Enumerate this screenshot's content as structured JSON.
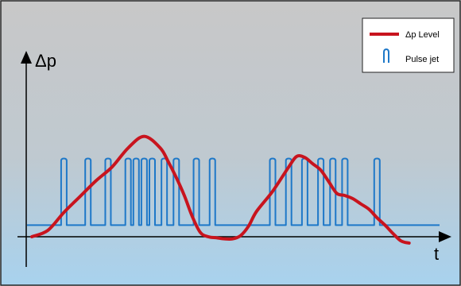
{
  "chart_data": {
    "type": "line",
    "title": "",
    "xlabel": "t",
    "ylabel": "Δp",
    "xlim": [
      0,
      100
    ],
    "ylim": [
      -10,
      100
    ],
    "grid": false,
    "legend_position": "top-right",
    "background": {
      "top": "#c8c8c8",
      "bottom": "#a8d2ee"
    },
    "series": [
      {
        "name": "Δp Level",
        "type": "line",
        "color": "#c8141e",
        "x": [
          0,
          4,
          8,
          12,
          16,
          20,
          24,
          28,
          32,
          34,
          36,
          38,
          40,
          42,
          44,
          46,
          48,
          50,
          52,
          54,
          56,
          60,
          64,
          66,
          68,
          70,
          72,
          74,
          76,
          78,
          80,
          82,
          84,
          86,
          88,
          90,
          92,
          94
        ],
        "y": [
          -6,
          0,
          17,
          32,
          47,
          60,
          78,
          89,
          78,
          65,
          50,
          33,
          13,
          -2,
          -6,
          -7,
          -8,
          -8,
          -5,
          4,
          18,
          37,
          60,
          70,
          69,
          63,
          57,
          46,
          35,
          33,
          30,
          25,
          20,
          12,
          5,
          -3,
          -10,
          -12
        ]
      },
      {
        "name": "Pulse jet",
        "type": "pulses",
        "color": "#1e78c8",
        "baseline": 5,
        "height": 63,
        "x": [
          8,
          14,
          19,
          24,
          26,
          28,
          30,
          33,
          36,
          41,
          45,
          60,
          64,
          68,
          72,
          75,
          78,
          86
        ]
      }
    ]
  }
}
